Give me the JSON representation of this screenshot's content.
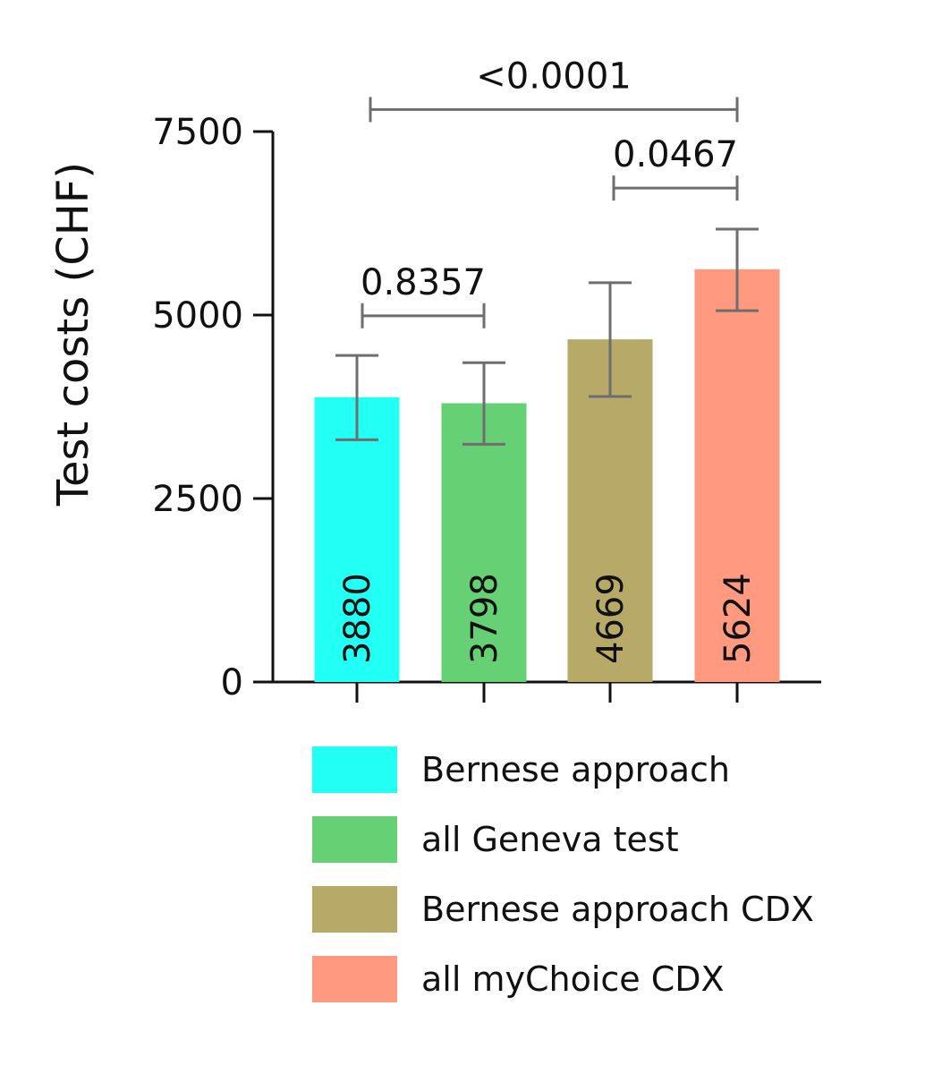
{
  "chart_data": {
    "type": "bar",
    "ylabel": "Test costs (CHF)",
    "ylim": [
      0,
      7500
    ],
    "yticks": [
      "0",
      "2500",
      "5000",
      "7500"
    ],
    "categories": [
      "Bernese approach",
      "all Geneva test",
      "Bernese approach CDX",
      "all myChoice CDX"
    ],
    "values": [
      3880,
      3798,
      4669,
      5624
    ],
    "value_labels": [
      "3880",
      "3798",
      "4669",
      "5624"
    ],
    "error_low": [
      3300,
      3240,
      3890,
      5060
    ],
    "error_high": [
      4450,
      4350,
      5440,
      6170
    ],
    "colors": [
      "#22FFF4",
      "#66D075",
      "#B7AA68",
      "#FF9980"
    ],
    "comparisons": [
      {
        "from": 0,
        "to": 1,
        "label": "0.8357",
        "level": 4990
      },
      {
        "from": 2,
        "to": 3,
        "label": "0.0467",
        "level": 6730
      },
      {
        "from": 0,
        "to": 3,
        "label": "<0.0001",
        "level": 7800
      }
    ],
    "legend": [
      "Bernese approach",
      "all Geneva test",
      "Bernese approach CDX",
      "all myChoice CDX"
    ],
    "legend_position": "bottom"
  }
}
